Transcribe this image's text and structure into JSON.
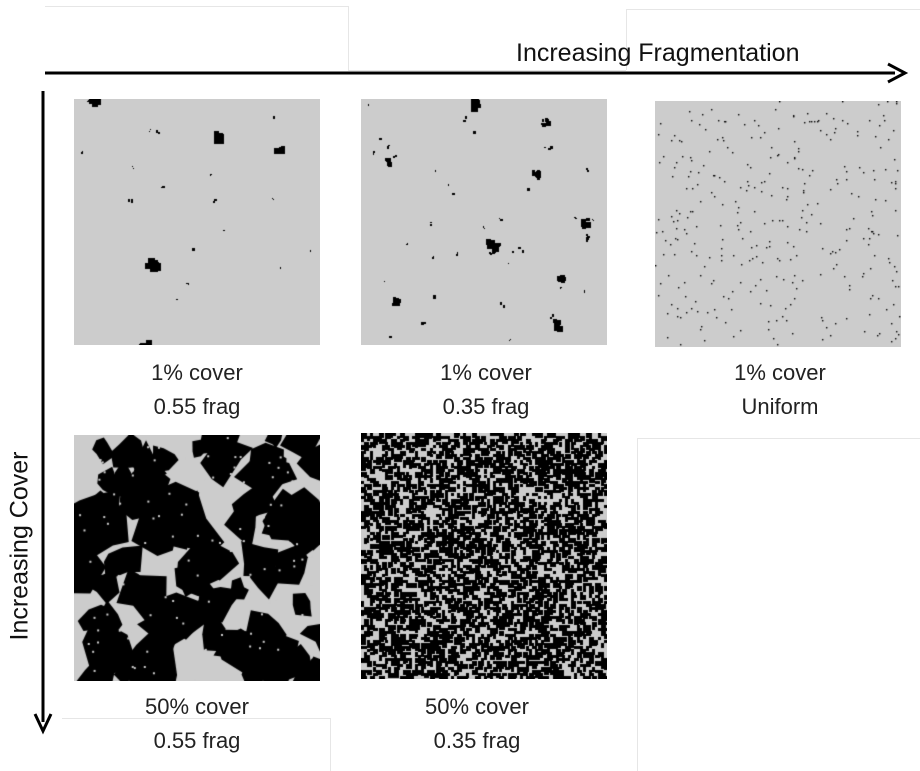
{
  "axes": {
    "horizontal_label": "Increasing Fragmentation",
    "vertical_label": "Increasing Cover"
  },
  "colors": {
    "background": "#cccccc",
    "patch": "#000000",
    "arrow": "#000000"
  },
  "panels": [
    {
      "cover_label": "1% cover",
      "frag_label": "0.55 frag",
      "cover": 0.01,
      "fragmentation": 0.55
    },
    {
      "cover_label": "1% cover",
      "frag_label": "0.35 frag",
      "cover": 0.01,
      "fragmentation": 0.35
    },
    {
      "cover_label": "1% cover",
      "frag_label": "Uniform",
      "cover": 0.01,
      "fragmentation": "uniform"
    },
    {
      "cover_label": "50% cover",
      "frag_label": "0.55 frag",
      "cover": 0.5,
      "fragmentation": 0.55
    },
    {
      "cover_label": "50% cover",
      "frag_label": "0.35 frag",
      "cover": 0.5,
      "fragmentation": 0.35
    }
  ]
}
